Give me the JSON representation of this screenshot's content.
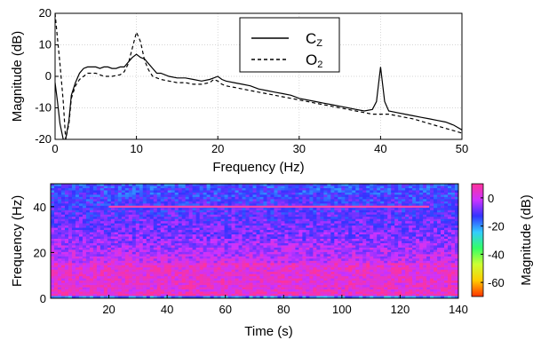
{
  "chart_data": [
    {
      "type": "line",
      "xlabel": "Frequency (Hz)",
      "ylabel": "Magnitude (dB)",
      "xlim": [
        0,
        50
      ],
      "ylim": [
        -20,
        20
      ],
      "xticks": [
        "0",
        "10",
        "20",
        "30",
        "40",
        "50"
      ],
      "yticks": [
        "20",
        "10",
        "0",
        "-10",
        "-20"
      ],
      "grid": true,
      "legend_position": "top-right",
      "legend": [
        {
          "main": "C",
          "sub": "Z",
          "style": "solid"
        },
        {
          "main": "O",
          "sub": "2",
          "style": "dashed"
        }
      ],
      "series": [
        {
          "name": "CZ",
          "style": "solid",
          "x": [
            0,
            0.3,
            0.6,
            1.0,
            1.3,
            1.7,
            2.0,
            2.5,
            3.0,
            3.5,
            4.0,
            4.5,
            5.0,
            5.5,
            6.0,
            6.5,
            7.0,
            7.5,
            8.0,
            8.5,
            9.0,
            9.5,
            10.0,
            10.5,
            11.0,
            11.5,
            12.0,
            12.5,
            13.0,
            14.0,
            15.0,
            16.0,
            17.0,
            18.0,
            19.0,
            19.5,
            20.0,
            20.5,
            21.0,
            22.0,
            23.0,
            24.0,
            25.0,
            26.0,
            27.0,
            28.0,
            29.0,
            30.0,
            31.0,
            32.0,
            33.0,
            34.0,
            35.0,
            36.0,
            37.0,
            38.0,
            39.0,
            39.5,
            40.0,
            40.5,
            41.0,
            42.0,
            43.0,
            44.0,
            45.0,
            46.0,
            47.0,
            48.0,
            49.0,
            50.0
          ],
          "y": [
            -2,
            -8,
            -15,
            -20,
            -20,
            -14,
            -6,
            -2,
            1,
            2.5,
            3,
            3,
            3,
            2.5,
            3,
            3,
            2.5,
            2.5,
            3,
            3,
            4.5,
            6,
            7,
            6,
            5.5,
            4,
            2.5,
            1,
            1,
            0,
            -0.5,
            -0.5,
            -1,
            -1.5,
            -1,
            -0.5,
            0,
            -1,
            -1.5,
            -2,
            -2.5,
            -3,
            -4,
            -4.5,
            -5,
            -5.5,
            -6,
            -7,
            -7.5,
            -8,
            -8.5,
            -9,
            -9.5,
            -10,
            -10.5,
            -11,
            -10.5,
            -8,
            3,
            -8,
            -11,
            -11.5,
            -12,
            -12.5,
            -13,
            -13.5,
            -14,
            -14.5,
            -15.5,
            -17
          ]
        },
        {
          "name": "O2",
          "style": "dashed",
          "x": [
            0,
            0.3,
            0.6,
            1.0,
            1.3,
            1.7,
            2.0,
            2.5,
            3.0,
            3.5,
            4.0,
            5.0,
            6.0,
            7.0,
            8.0,
            8.5,
            9.0,
            9.5,
            10.0,
            10.5,
            11.0,
            11.5,
            12.0,
            13.0,
            14.0,
            15.0,
            16.0,
            17.0,
            18.0,
            19.0,
            19.5,
            20.0,
            20.5,
            21.0,
            22.0,
            23.0,
            24.0,
            25.0,
            26.0,
            27.0,
            28.0,
            29.0,
            30.0,
            32.0,
            34.0,
            36.0,
            38.0,
            39.0,
            40.0,
            41.0,
            42.0,
            44.0,
            46.0,
            48.0,
            50.0
          ],
          "y": [
            20,
            12,
            4,
            -8,
            -20,
            -15,
            -7,
            -3,
            -1,
            0,
            1,
            1,
            0,
            0,
            0.5,
            1.5,
            4,
            9,
            14,
            11,
            5,
            2,
            0,
            -1,
            -1.5,
            -2,
            -2,
            -2.5,
            -2.5,
            -2,
            -1,
            -1.5,
            -2.5,
            -3,
            -3.5,
            -4,
            -4.5,
            -5,
            -5.5,
            -6,
            -6.5,
            -7,
            -7.5,
            -8.5,
            -9.5,
            -10.5,
            -11.5,
            -12,
            -12,
            -12,
            -12.5,
            -13.5,
            -15,
            -16.5,
            -18
          ]
        }
      ]
    },
    {
      "type": "heatmap",
      "xlabel": "Time (s)",
      "ylabel": "Frequency (Hz)",
      "xlim": [
        0,
        140
      ],
      "ylim": [
        0,
        50
      ],
      "xticks": [
        "20",
        "40",
        "60",
        "80",
        "100",
        "120",
        "140"
      ],
      "yticks": [
        "40",
        "20",
        "0"
      ],
      "colorbar": {
        "label": "Magnitude (dB)",
        "ticks": [
          "0",
          "-20",
          "-40",
          "-60"
        ],
        "range": [
          10,
          -70
        ],
        "stops": [
          "#ff3399",
          "#cc33ff",
          "#3333ff",
          "#33ccff",
          "#33ff66",
          "#ccff33",
          "#ffcc00",
          "#ff3300"
        ]
      },
      "features": {
        "steady_line_hz": 40,
        "steady_line_time": [
          20,
          130
        ],
        "high_power_band_hz": [
          3,
          15
        ]
      }
    }
  ]
}
